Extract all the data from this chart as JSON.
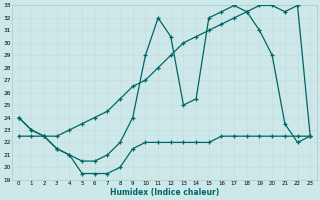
{
  "xlabel": "Humidex (Indice chaleur)",
  "bg_color": "#cce8e8",
  "grid_color": "#aacccc",
  "line_color": "#006666",
  "ylim": [
    19,
    33
  ],
  "xlim": [
    -0.5,
    23.5
  ],
  "yticks": [
    19,
    20,
    21,
    22,
    23,
    24,
    25,
    26,
    27,
    28,
    29,
    30,
    31,
    32,
    33
  ],
  "xticks": [
    0,
    1,
    2,
    3,
    4,
    5,
    6,
    7,
    8,
    9,
    10,
    11,
    12,
    13,
    14,
    15,
    16,
    17,
    18,
    19,
    20,
    21,
    22,
    23
  ],
  "line1_x": [
    0,
    1,
    2,
    3,
    4,
    5,
    6,
    7,
    8,
    9,
    10,
    11,
    12,
    13,
    14,
    15,
    16,
    17,
    18,
    19,
    20,
    21,
    22,
    23
  ],
  "line1_y": [
    24.0,
    23.0,
    22.5,
    21.5,
    21.0,
    20.5,
    20.5,
    21.0,
    22.0,
    24.0,
    29.0,
    32.0,
    30.5,
    25.0,
    25.5,
    32.0,
    32.5,
    33.0,
    32.5,
    31.0,
    29.0,
    23.5,
    22.0,
    22.5
  ],
  "line2_x": [
    0,
    1,
    2,
    3,
    4,
    5,
    6,
    7,
    8,
    9,
    10,
    11,
    12,
    13,
    14,
    15,
    16,
    17,
    18,
    19,
    20,
    21,
    22,
    23
  ],
  "line2_y": [
    22.5,
    22.5,
    22.5,
    22.5,
    23.0,
    23.5,
    24.0,
    24.5,
    25.5,
    26.5,
    27.0,
    28.0,
    29.0,
    30.0,
    30.5,
    31.0,
    31.5,
    32.0,
    32.5,
    33.0,
    33.0,
    32.5,
    33.0,
    22.5
  ],
  "line3_x": [
    0,
    1,
    2,
    3,
    4,
    5,
    6,
    7,
    8,
    9,
    10,
    11,
    12,
    13,
    14,
    15,
    16,
    17,
    18,
    19,
    20,
    21,
    22,
    23
  ],
  "line3_y": [
    24.0,
    23.0,
    22.5,
    21.5,
    21.0,
    19.5,
    19.5,
    19.5,
    20.0,
    21.5,
    22.0,
    22.0,
    22.0,
    22.0,
    22.0,
    22.0,
    22.5,
    22.5,
    22.5,
    22.5,
    22.5,
    22.5,
    22.5,
    22.5
  ]
}
